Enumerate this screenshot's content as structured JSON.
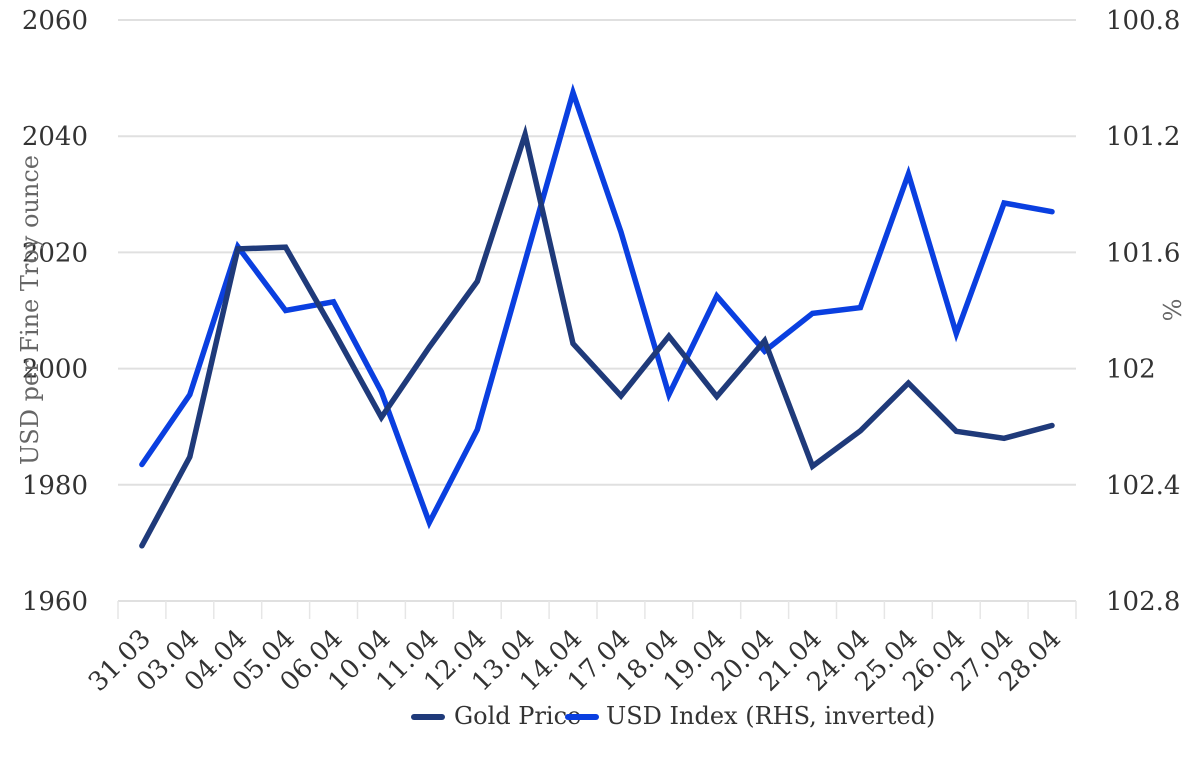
{
  "chart_data": {
    "type": "line",
    "categories": [
      "31.03",
      "03.04",
      "04.04",
      "05.04",
      "06.04",
      "10.04",
      "11.04",
      "12.04",
      "13.04",
      "14.04",
      "17.04",
      "18.04",
      "19.04",
      "20.04",
      "21.04",
      "24.04",
      "25.04",
      "26.04",
      "27.04",
      "28.04"
    ],
    "series": [
      {
        "name": "Gold Price",
        "axis": "left",
        "color": "#1f3a7a",
        "values": [
          1969.5,
          1984.8,
          2020.6,
          2020.9,
          2006.5,
          1991.6,
          2003.7,
          2015.0,
          2040.3,
          2004.3,
          1995.3,
          2005.6,
          1995.2,
          2004.8,
          1983.2,
          1989.3,
          1997.5,
          1989.2,
          1988.0,
          1990.2
        ]
      },
      {
        "name": "USD Index (RHS, inverted)",
        "axis": "right",
        "color": "#0a3fe0",
        "values": [
          102.33,
          102.09,
          101.58,
          101.8,
          101.77,
          102.08,
          102.53,
          102.21,
          101.63,
          101.05,
          101.53,
          102.09,
          101.75,
          101.94,
          101.81,
          101.79,
          101.33,
          101.88,
          101.43,
          101.46
        ]
      }
    ],
    "ylabel": "USD per Fine Troy ounce",
    "y2label": "%",
    "ylim": [
      1960,
      2060
    ],
    "yticks": [
      "1960",
      "1980",
      "2000",
      "2020",
      "2040",
      "2060"
    ],
    "y2lim": [
      100.8,
      102.8
    ],
    "y2_inverted": true,
    "y2ticks": [
      "100.8",
      "101.2",
      "101.6",
      "102",
      "102.4",
      "102.8"
    ],
    "grid": true,
    "legend": "bottom"
  }
}
